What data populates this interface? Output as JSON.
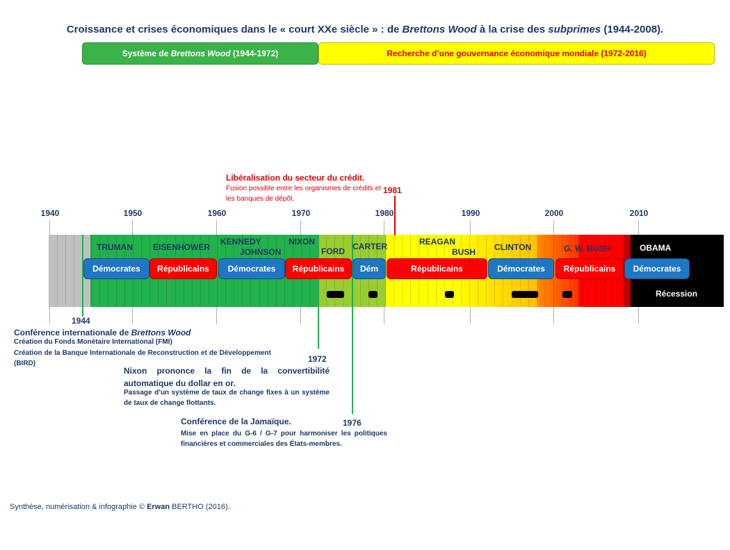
{
  "title": {
    "pre": "Croissance et crises économiques dans le « court XXe siècle » : de ",
    "em1": "Brettons Wood",
    "mid": " à la crise des ",
    "em2": "subprimes",
    "post": " (1944-2008)."
  },
  "eras": {
    "green": {
      "pre": "Système de ",
      "em": "Brettons Wood",
      "post": " (1944-1972)",
      "color": "#3bb34a"
    },
    "yellow": {
      "label": "Recherche d’une gouvernance économique mondiale (1972-2016)",
      "color": "#ffff00"
    }
  },
  "axis": {
    "ticks": [
      "1940",
      "1950",
      "1960",
      "1970",
      "1980",
      "1990",
      "2000",
      "2010"
    ]
  },
  "colors": {
    "pre_war": "#c0c0c0",
    "growth": "#22b14c",
    "light_growth": "#9acd32",
    "slow_growth": "#ffff00",
    "orange": "#ffc000",
    "crisis": "#ff0000",
    "obama": "#000000",
    "democrats": "#1f77c4",
    "republicans": "#ff0000"
  },
  "presidents": {
    "truman": "TRUMAN",
    "eisenhower": "EISENHOWER",
    "kennedy": "KENNEDY",
    "johnson": "JOHNSON",
    "nixon": "NIXON",
    "ford": "FORD",
    "carter": "CARTER",
    "reagan": "REAGAN",
    "bush": "BUSH",
    "clinton": "CLINTON",
    "gwbush": "G. W. BUSH",
    "obama": "OBAMA"
  },
  "parties": {
    "p1": "Démocrates",
    "p2": "Républicains",
    "p3": "Démocrates",
    "p4": "Républicains",
    "p5": "Dém",
    "p6": "Républicains",
    "p7": "Démocrates",
    "p8": "Républicains",
    "p9": "Démocrates"
  },
  "recession_label": "Récession",
  "events": {
    "e1944": {
      "year": "1944",
      "title_pre": "Conférence internationale de ",
      "title_em": "Brettons Wood",
      "line1": "Création du Fonds Monétaire International (FMI)",
      "line2": "Création de la Banque Internationale de Reconstruction et de Développement (BIRD)"
    },
    "e1972": {
      "year": "1972",
      "title": "Nixon prononce la fin de la convertibilité automatique du dollar en or.",
      "sub": "Passage d’un système de taux de change fixes à un système de taux de change flottants."
    },
    "e1976": {
      "year": "1976",
      "title": "Conférence de la Jamaïque.",
      "sub": "Mise en place du G-6 / G-7 pour harmoniser les politiques financières et commerciales des États-membres."
    },
    "e1981": {
      "year": "1981",
      "title": "Libéralisation du secteur du crédit.",
      "sub": "Fusion possible entre les organismes de crédits et les banques de dépôt."
    }
  },
  "footer": {
    "pre": "Synthèse, numérisation & infographie © ",
    "bold": "Erwan",
    "post": " BERTHO (2016)."
  }
}
